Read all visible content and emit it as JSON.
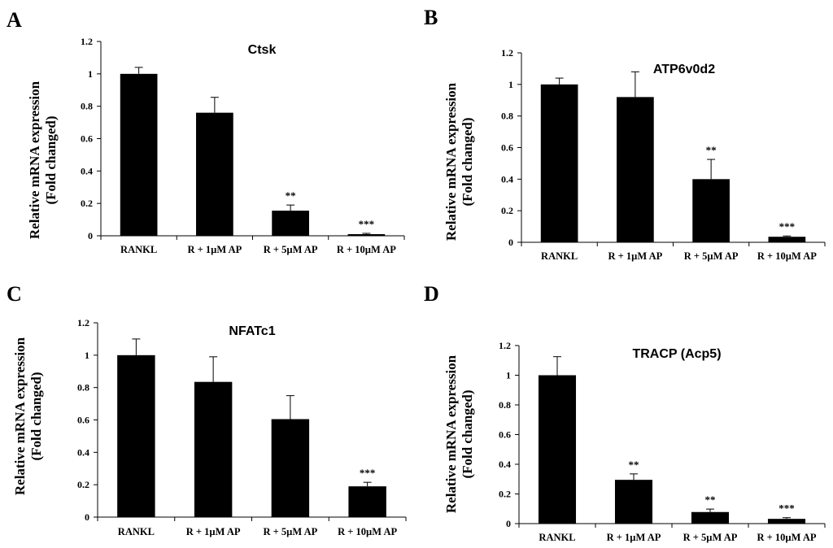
{
  "figure": {
    "colors": {
      "bar": "#000000",
      "axis": "#000000",
      "text": "#000000",
      "background": "#ffffff"
    }
  },
  "chart_data": [
    {
      "panel": "A",
      "type": "bar",
      "title": "Ctsk",
      "ylabel_line1": "Relative mRNA expression",
      "ylabel_line2": "(Fold changed)",
      "xlabel": "",
      "categories": [
        "RANKL",
        "R + 1µM AP",
        "R + 5µM AP",
        "R + 10µM AP"
      ],
      "values": [
        1.0,
        0.76,
        0.155,
        0.01
      ],
      "errors": [
        0.04,
        0.095,
        0.035,
        0.005
      ],
      "significance": [
        "",
        "",
        "**",
        "***"
      ],
      "ylim": [
        0,
        1.2
      ],
      "yticks": [
        0,
        0.2,
        0.4,
        0.6,
        0.8,
        1,
        1.2
      ],
      "ytick_labels": [
        "0",
        "0.2",
        "0.4",
        "0.6",
        "0.8",
        "1",
        "1.2"
      ],
      "grid": false
    },
    {
      "panel": "B",
      "type": "bar",
      "title": "ATP6v0d2",
      "ylabel_line1": "Relative mRNA expression",
      "ylabel_line2": "(Fold changed)",
      "xlabel": "",
      "categories": [
        "RANKL",
        "R + 1µM AP",
        "R + 5µM AP",
        "R + 10µM AP"
      ],
      "values": [
        1.0,
        0.92,
        0.4,
        0.035
      ],
      "errors": [
        0.04,
        0.16,
        0.125,
        0.005
      ],
      "significance": [
        "",
        "",
        "**",
        "***"
      ],
      "ylim": [
        0,
        1.2
      ],
      "yticks": [
        0,
        0.2,
        0.4,
        0.6,
        0.8,
        1,
        1.2
      ],
      "ytick_labels": [
        "0",
        "0.2",
        "0.4",
        "0.6",
        "0.8",
        "1",
        "1.2"
      ],
      "grid": false
    },
    {
      "panel": "C",
      "type": "bar",
      "title": "NFATc1",
      "ylabel_line1": "Relative mRNA expression",
      "ylabel_line2": "(Fold changed)",
      "xlabel": "",
      "categories": [
        "RANKL",
        "R + 1µM AP",
        "R + 5µM AP",
        "R + 10µM AP"
      ],
      "values": [
        1.0,
        0.835,
        0.605,
        0.19
      ],
      "errors": [
        0.1,
        0.155,
        0.145,
        0.025
      ],
      "significance": [
        "",
        "",
        "",
        "***"
      ],
      "ylim": [
        0,
        1.2
      ],
      "yticks": [
        0,
        0.2,
        0.4,
        0.6,
        0.8,
        1,
        1.2
      ],
      "ytick_labels": [
        "0",
        "0.2",
        "0.4",
        "0.6",
        "0.8",
        "1",
        "1.2"
      ],
      "grid": false
    },
    {
      "panel": "D",
      "type": "bar",
      "title": "TRACP (Acp5)",
      "ylabel_line1": "Relative mRNA expression",
      "ylabel_line2": "(Fold changed)",
      "xlabel": "",
      "categories": [
        "RANKL",
        "R + 1µM AP",
        "R + 5µM AP",
        "R + 10µM AP"
      ],
      "values": [
        1.0,
        0.295,
        0.078,
        0.032
      ],
      "errors": [
        0.125,
        0.04,
        0.02,
        0.008
      ],
      "significance": [
        "",
        "**",
        "**",
        "***"
      ],
      "ylim": [
        0,
        1.2
      ],
      "yticks": [
        0,
        0.2,
        0.4,
        0.6,
        0.8,
        1,
        1.2
      ],
      "ytick_labels": [
        "0",
        "0.2",
        "0.4",
        "0.6",
        "0.8",
        "1",
        "1.2"
      ],
      "grid": false
    }
  ]
}
